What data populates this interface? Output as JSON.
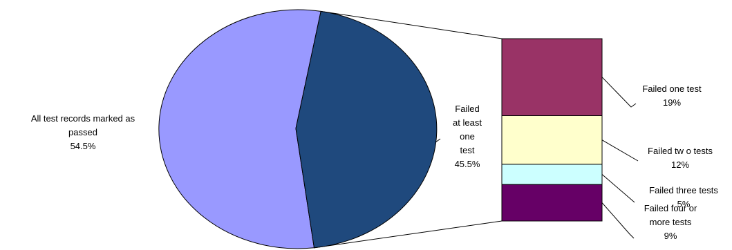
{
  "chart_data": {
    "type": "bar-of-pie",
    "title": "",
    "pie": {
      "slices": [
        {
          "label_lines": [
            "All test records marked as",
            "passed"
          ],
          "value_label": "54.5%",
          "value": 54.5,
          "color": "#9999ff"
        },
        {
          "label_lines": [
            "Failed",
            "at least",
            "one",
            "test"
          ],
          "value_label": "45.5%",
          "value": 45.5,
          "color": "#1f497d"
        }
      ]
    },
    "bar": {
      "of_slice": 1,
      "segments": [
        {
          "label_lines": [
            "Failed one test"
          ],
          "value_label": "19%",
          "value": 19,
          "color": "#993366"
        },
        {
          "label_lines": [
            "Failed tw o tests"
          ],
          "value_label": "12%",
          "value": 12,
          "color": "#ffffcc"
        },
        {
          "label_lines": [
            "Failed three tests"
          ],
          "value_label": "5%",
          "value": 5,
          "color": "#ccffff"
        },
        {
          "label_lines": [
            "Failed four or",
            "more tests"
          ],
          "value_label": "9%",
          "value": 9,
          "color": "#660066"
        }
      ]
    }
  }
}
